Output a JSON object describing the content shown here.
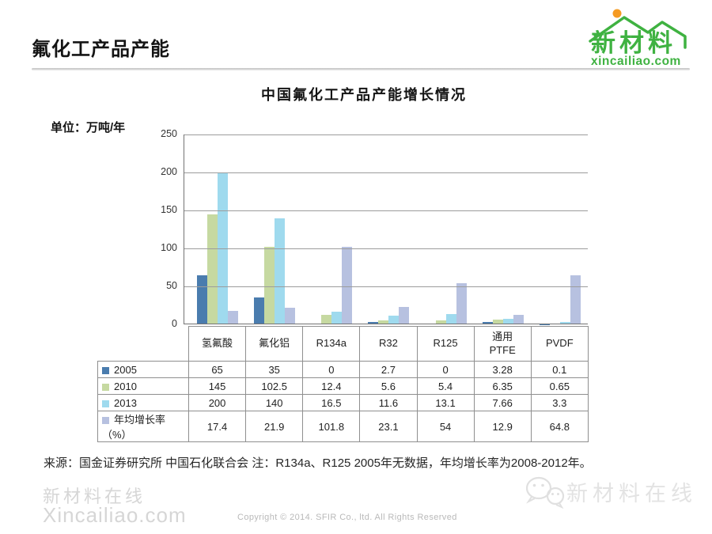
{
  "page": {
    "title": "氟化工产品产能",
    "logo": {
      "brand": "新材料",
      "domain": "xincailiao.com",
      "brand_color": "#3fb241",
      "sun_color": "#f59b22"
    }
  },
  "chart_data": {
    "type": "bar",
    "title": "中国氟化工产品产能增长情况",
    "unit_label": "单位：万吨/年",
    "categories": [
      "氢氟酸",
      "氟化铝",
      "R134a",
      "R32",
      "R125",
      "通用PTFE",
      "PVDF"
    ],
    "categories_display": [
      "氢氟酸",
      "氟化铝",
      "R134a",
      "R32",
      "R125",
      "通用\nPTFE",
      "PVDF"
    ],
    "series": [
      {
        "name": "2005",
        "color": "#4a7cae",
        "values": [
          65,
          35,
          0,
          2.7,
          0,
          3.28,
          0.1
        ]
      },
      {
        "name": "2010",
        "color": "#c6d9a1",
        "values": [
          145,
          102.5,
          12.4,
          5.6,
          5.4,
          6.35,
          0.65
        ]
      },
      {
        "name": "2013",
        "color": "#9fdaee",
        "values": [
          200,
          140,
          16.5,
          11.6,
          13.1,
          7.66,
          3.3
        ]
      },
      {
        "name": "年均增长率（%）",
        "color": "#b7c1e0",
        "values": [
          17.4,
          21.9,
          101.8,
          23.1,
          54,
          12.9,
          64.8
        ]
      }
    ],
    "y_ticks": [
      250,
      200,
      150,
      100,
      50,
      0
    ],
    "ylim": [
      0,
      250
    ],
    "grid": true,
    "legend_position": "table-left"
  },
  "footnote": "来源：国金证券研究所 中国石化联合会 注：R134a、R125 2005年无数据，年均增长率为2008-2012年。",
  "footer": {
    "watermark_left_line1": "新材料在线",
    "watermark_left_line2": "Xincailiao.com",
    "copyright": "Copyright © 2014. SFIR Co., ltd. All Rights Reserved",
    "watermark_right": "新材料在线"
  }
}
